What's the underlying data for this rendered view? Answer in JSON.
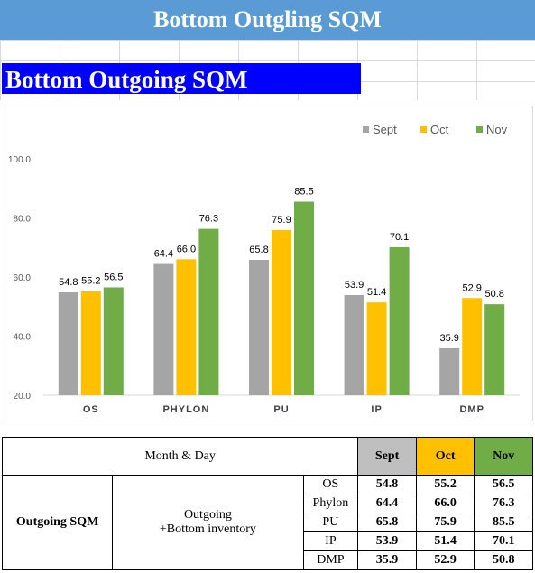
{
  "header": {
    "title": "Bottom Outgling SQM",
    "subtitle": "Bottom Outgoing SQM"
  },
  "colors": {
    "sept": "#a5a5a5",
    "oct": "#ffc000",
    "nov": "#70ad47",
    "title_bg": "#5b9bd5",
    "subtitle_bg": "#0000ff"
  },
  "chart_data": {
    "type": "bar",
    "title": "",
    "xlabel": "",
    "ylabel": "",
    "categories": [
      "OS",
      "PHYLON",
      "PU",
      "IP",
      "DMP"
    ],
    "series": [
      {
        "name": "Sept",
        "values": [
          54.8,
          64.4,
          65.8,
          53.9,
          35.9
        ]
      },
      {
        "name": "Oct",
        "values": [
          55.2,
          66.0,
          75.9,
          51.4,
          52.9
        ]
      },
      {
        "name": "Nov",
        "values": [
          56.5,
          76.3,
          85.5,
          70.1,
          50.8
        ]
      }
    ],
    "ylim": [
      20,
      100
    ],
    "yticks": [
      "20.0",
      "40.0",
      "60.0",
      "80.0",
      "100.0"
    ],
    "grid": false,
    "legend": "top-right"
  },
  "table": {
    "month_day_label": "Month & Day",
    "col_sept": "Sept",
    "col_oct": "Oct",
    "col_nov": "Nov",
    "group_label": "Outgoing SQM",
    "desc_line1": "Outgoing",
    "desc_line2": "+Bottom inventory",
    "rows": [
      {
        "name": "OS",
        "sept": "54.8",
        "oct": "55.2",
        "nov": "56.5"
      },
      {
        "name": "Phylon",
        "sept": "64.4",
        "oct": "66.0",
        "nov": "76.3"
      },
      {
        "name": "PU",
        "sept": "65.8",
        "oct": "75.9",
        "nov": "85.5"
      },
      {
        "name": "IP",
        "sept": "53.9",
        "oct": "51.4",
        "nov": "70.1"
      },
      {
        "name": "DMP",
        "sept": "35.9",
        "oct": "52.9",
        "nov": "50.8"
      }
    ]
  }
}
